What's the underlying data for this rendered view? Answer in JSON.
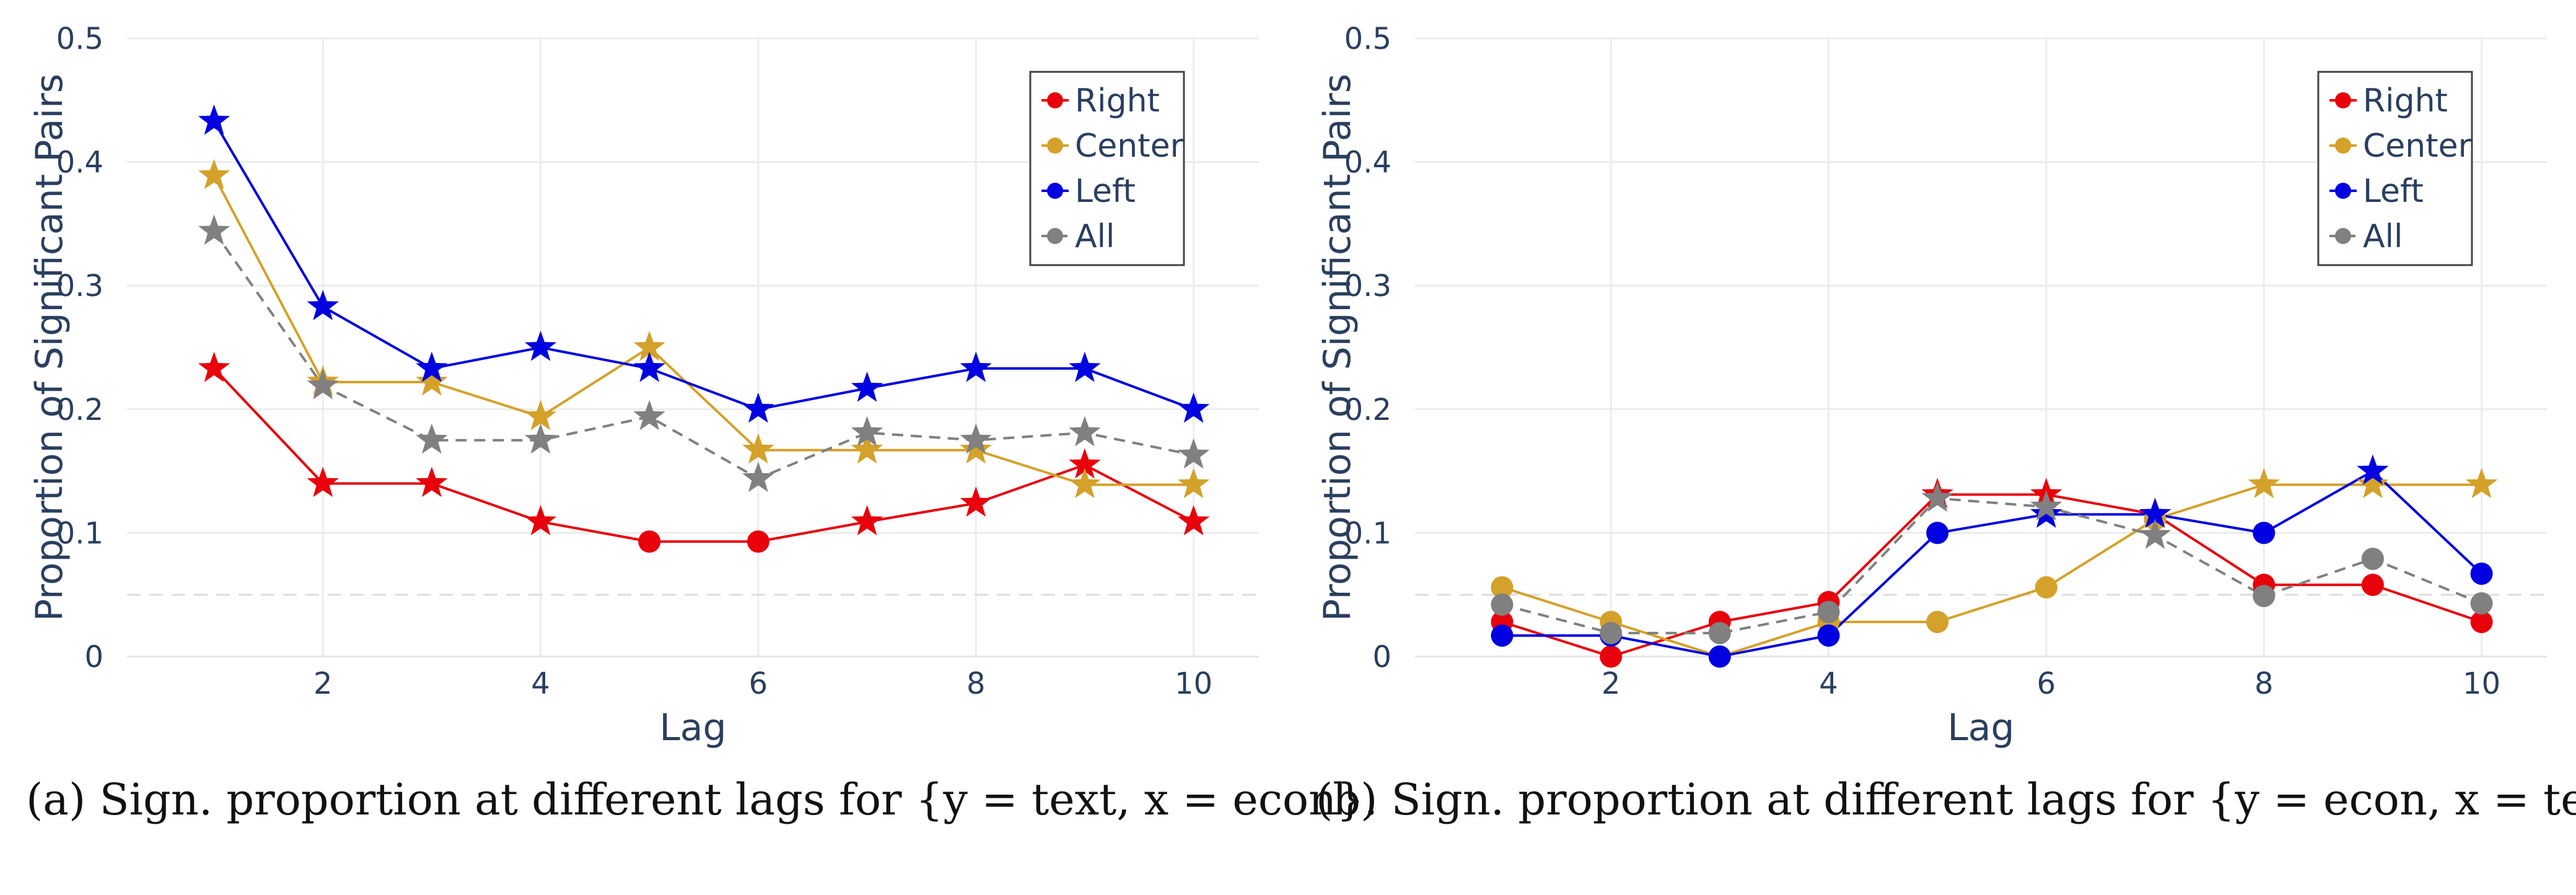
{
  "captions": {
    "a": "(a) Sign. proportion at different lags for {y = text, x = econ}.",
    "b": "(b) Sign. proportion at different lags for {y = econ, x = text}."
  },
  "colors": {
    "Right": "#e8000b",
    "Center": "#d4a12a",
    "Left": "#0000e0",
    "All": "#808080",
    "grid": "#ececec",
    "reference_line": "#dddddd"
  },
  "chart_data": [
    {
      "type": "line",
      "xlabel": "Lag",
      "ylabel": "Proportion of Significant Pairs",
      "xlim": [
        0.2,
        10.6
      ],
      "ylim": [
        0,
        0.5
      ],
      "xticks": [
        2,
        4,
        6,
        8,
        10
      ],
      "yticks": [
        0,
        0.1,
        0.2,
        0.3,
        0.4,
        0.5
      ],
      "ytick_labels": [
        "0",
        "0.1",
        "0.2",
        "0.3",
        "0.4",
        "0.5"
      ],
      "grid": true,
      "reference_line_y": 0.05,
      "legend_position": "top-right",
      "marker_legend": "star = significant, circle = not significant",
      "x": [
        1,
        2,
        3,
        4,
        5,
        6,
        7,
        8,
        9,
        10
      ],
      "series": [
        {
          "name": "Right",
          "values": [
            0.233,
            0.14,
            0.14,
            0.109,
            0.093,
            0.093,
            0.109,
            0.124,
            0.155,
            0.109
          ],
          "markers": [
            "star",
            "star",
            "star",
            "star",
            "circle",
            "circle",
            "star",
            "star",
            "star",
            "star"
          ],
          "dash": "solid"
        },
        {
          "name": "Center",
          "values": [
            0.389,
            0.222,
            0.222,
            0.194,
            0.25,
            0.167,
            0.167,
            0.167,
            0.139,
            0.139
          ],
          "markers": [
            "star",
            "star",
            "star",
            "star",
            "star",
            "star",
            "star",
            "star",
            "star",
            "star"
          ],
          "dash": "solid"
        },
        {
          "name": "Left",
          "values": [
            0.433,
            0.283,
            0.233,
            0.25,
            0.233,
            0.2,
            0.217,
            0.233,
            0.233,
            0.2
          ],
          "markers": [
            "star",
            "star",
            "star",
            "star",
            "star",
            "star",
            "star",
            "star",
            "star",
            "star"
          ],
          "dash": "solid"
        },
        {
          "name": "All",
          "values": [
            0.344,
            0.219,
            0.175,
            0.175,
            0.194,
            0.144,
            0.181,
            0.175,
            0.181,
            0.163
          ],
          "markers": [
            "star",
            "star",
            "star",
            "star",
            "star",
            "star",
            "star",
            "star",
            "star",
            "star"
          ],
          "dash": "dashed"
        }
      ]
    },
    {
      "type": "line",
      "xlabel": "Lag",
      "ylabel": "Proportion of Significant Pairs",
      "xlim": [
        0.2,
        10.6
      ],
      "ylim": [
        0,
        0.5
      ],
      "xticks": [
        2,
        4,
        6,
        8,
        10
      ],
      "yticks": [
        0,
        0.1,
        0.2,
        0.3,
        0.4,
        0.5
      ],
      "ytick_labels": [
        "0",
        "0.1",
        "0.2",
        "0.3",
        "0.4",
        "0.5"
      ],
      "grid": true,
      "reference_line_y": 0.05,
      "legend_position": "top-right",
      "x": [
        1,
        2,
        3,
        4,
        5,
        6,
        7,
        8,
        9,
        10
      ],
      "series": [
        {
          "name": "Right",
          "values": [
            0.028,
            0.0,
            0.028,
            0.044,
            0.131,
            0.131,
            0.115,
            0.058,
            0.058,
            0.028
          ],
          "markers": [
            "circle",
            "circle",
            "circle",
            "circle",
            "star",
            "star",
            "star",
            "circle",
            "circle",
            "circle"
          ],
          "dash": "solid"
        },
        {
          "name": "Center",
          "values": [
            0.056,
            0.028,
            0.0,
            0.028,
            0.028,
            0.056,
            0.111,
            0.139,
            0.139,
            0.139
          ],
          "markers": [
            "circle",
            "circle",
            "circle",
            "circle",
            "circle",
            "circle",
            "circle",
            "star",
            "star",
            "star"
          ],
          "dash": "solid"
        },
        {
          "name": "Left",
          "values": [
            0.017,
            0.017,
            0.0,
            0.017,
            0.1,
            0.115,
            0.115,
            0.1,
            0.15,
            0.067
          ],
          "markers": [
            "circle",
            "circle",
            "circle",
            "circle",
            "circle",
            "star",
            "star",
            "circle",
            "star",
            "circle"
          ],
          "dash": "solid"
        },
        {
          "name": "All",
          "values": [
            0.042,
            0.019,
            0.019,
            0.036,
            0.128,
            0.121,
            0.098,
            0.049,
            0.079,
            0.043
          ],
          "markers": [
            "circle",
            "circle",
            "circle",
            "circle",
            "star",
            "star",
            "star",
            "circle",
            "circle",
            "circle"
          ],
          "dash": "dashed"
        }
      ]
    }
  ]
}
